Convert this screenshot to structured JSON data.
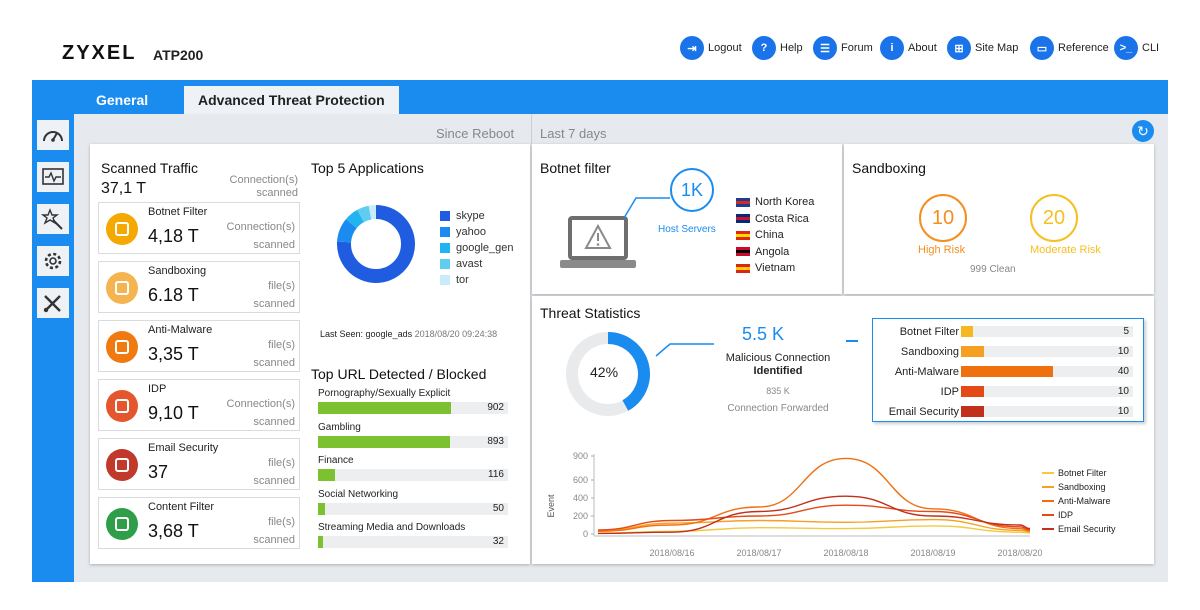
{
  "header": {
    "brand": "ZYXEL",
    "model": "ATP200",
    "nav": [
      {
        "label": "Logout",
        "icon": "logout-icon",
        "glyph": "⇥"
      },
      {
        "label": "Help",
        "icon": "help-icon",
        "glyph": "?"
      },
      {
        "label": "Forum",
        "icon": "forum-icon",
        "glyph": "☰"
      },
      {
        "label": "About",
        "icon": "about-icon",
        "glyph": "i"
      },
      {
        "label": "Site Map",
        "icon": "site-map-icon",
        "glyph": "⊞"
      },
      {
        "label": "Reference",
        "icon": "reference-icon",
        "glyph": "▭"
      },
      {
        "label": "CLI",
        "icon": "cli-icon",
        "glyph": ">_"
      }
    ]
  },
  "tabs": {
    "general": "General",
    "atp": "Advanced Threat Protection"
  },
  "sidebar": {
    "icons": [
      "dashboard-icon",
      "monitor-icon",
      "wizard-icon",
      "settings-icon",
      "maintenance-icon"
    ]
  },
  "main": {
    "since_reboot": "Since Reboot",
    "last_7_days": "Last 7 days"
  },
  "scanned_traffic": {
    "title": "Scanned Traffic",
    "total": "37,1 T",
    "unit": "Connection(s)",
    "unit2": "scanned",
    "services": [
      {
        "name": "Botnet Filter",
        "value": "4,18 T",
        "unit": "Connection(s)",
        "unit2": "scanned",
        "icon": "botnet-filter-icon",
        "color": "#f5a800"
      },
      {
        "name": "Sandboxing",
        "value": "6.18 T",
        "unit": "file(s)",
        "unit2": "scanned",
        "icon": "sandboxing-icon",
        "color": "#f5b450"
      },
      {
        "name": "Anti-Malware",
        "value": "3,35 T",
        "unit": "file(s)",
        "unit2": "scanned",
        "icon": "anti-malware-icon",
        "color": "#f07a10"
      },
      {
        "name": "IDP",
        "value": "9,10 T",
        "unit": "Connection(s)",
        "unit2": "scanned",
        "icon": "idp-icon",
        "color": "#e4572e"
      },
      {
        "name": "Email Security",
        "value": "37",
        "unit": "file(s)",
        "unit2": "scanned",
        "icon": "email-security-icon",
        "color": "#c0392b"
      },
      {
        "name": "Content Filter",
        "value": "3,68 T",
        "unit": "file(s)",
        "unit2": "scanned",
        "icon": "content-filter-icon",
        "color": "#2e9e48"
      }
    ]
  },
  "top_apps": {
    "title": "Top 5 Applications",
    "apps": [
      {
        "name": "skype",
        "color": "#1f5ce0",
        "share": 0.76
      },
      {
        "name": "yahoo",
        "color": "#1a8cf0",
        "share": 0.1
      },
      {
        "name": "google_gen",
        "color": "#22b4f0",
        "share": 0.06
      },
      {
        "name": "avast",
        "color": "#5fcdf2",
        "share": 0.05
      },
      {
        "name": "tor",
        "color": "#c8ecfa",
        "share": 0.03
      }
    ],
    "last_seen_label": "Last Seen: google_ads",
    "last_seen_time": "2018/08/20 09:24:38"
  },
  "top_url": {
    "title": "Top URL Detected / Blocked",
    "max": 950,
    "items": [
      {
        "name": "Pornography/Sexually Explicit",
        "value": 902
      },
      {
        "name": "Gambling",
        "value": 893
      },
      {
        "name": "Finance",
        "value": 116
      },
      {
        "name": "Social Networking",
        "value": 50
      },
      {
        "name": "Streaming Media and Downloads",
        "value": 32
      }
    ]
  },
  "botnet": {
    "title": "Botnet filter",
    "host_count": "1K",
    "host_label": "Host Servers",
    "countries": [
      {
        "name": "North Korea",
        "flag": "north-korea-flag-icon",
        "c1": "#1b3d94",
        "c2": "#d52b1e"
      },
      {
        "name": "Costa Rica",
        "flag": "costa-rica-flag-icon",
        "c1": "#002b7f",
        "c2": "#ce1126"
      },
      {
        "name": "China",
        "flag": "china-flag-icon",
        "c1": "#de2910",
        "c2": "#ffde00"
      },
      {
        "name": "Angola",
        "flag": "angola-flag-icon",
        "c1": "#cc092f",
        "c2": "#000000"
      },
      {
        "name": "Vietnam",
        "flag": "vietnam-flag-icon",
        "c1": "#da251d",
        "c2": "#ffcd00"
      }
    ]
  },
  "sandboxing": {
    "title": "Sandboxing",
    "high_value": "10",
    "high_label": "High Risk",
    "moderate_value": "20",
    "moderate_label": "Moderate Risk",
    "clean": "999 Clean"
  },
  "threat": {
    "title": "Threat Statistics",
    "percent_label": "42%",
    "percent": 0.42,
    "malicious_value": "5.5 K",
    "malicious_label": "Malicious Connection",
    "malicious_label2": "Identified",
    "forwarded_value": "835 K",
    "forwarded_label": "Connection Forwarded",
    "max": 40,
    "items": [
      {
        "name": "Botnet Filter",
        "value": 5,
        "color": "#f5b820"
      },
      {
        "name": "Sandboxing",
        "value": 10,
        "color": "#f5a020"
      },
      {
        "name": "Anti-Malware",
        "value": 40,
        "color": "#f07010"
      },
      {
        "name": "IDP",
        "value": 10,
        "color": "#e44a18"
      },
      {
        "name": "Email Security",
        "value": 10,
        "color": "#c0301a"
      }
    ]
  },
  "chart_data": {
    "type": "line",
    "ylabel": "Event",
    "ylim": [
      0,
      900
    ],
    "yticks": [
      "900",
      "600",
      "400",
      "200",
      "0"
    ],
    "x": [
      "2018/08/16",
      "2018/08/17",
      "2018/08/18",
      "2018/08/19",
      "2018/08/20"
    ],
    "series": [
      {
        "name": "Botnet Filter",
        "color": "#f5c842",
        "values": [
          30,
          70,
          60,
          90,
          20
        ]
      },
      {
        "name": "Sandboxing",
        "color": "#f5a020",
        "values": [
          120,
          150,
          130,
          160,
          40
        ]
      },
      {
        "name": "Anti-Malware",
        "color": "#f07010",
        "values": [
          100,
          300,
          870,
          280,
          60
        ]
      },
      {
        "name": "IDP",
        "color": "#e44a18",
        "values": [
          150,
          200,
          320,
          250,
          80
        ]
      },
      {
        "name": "Email Security",
        "color": "#c0301a",
        "values": [
          20,
          250,
          420,
          200,
          100
        ]
      }
    ]
  }
}
